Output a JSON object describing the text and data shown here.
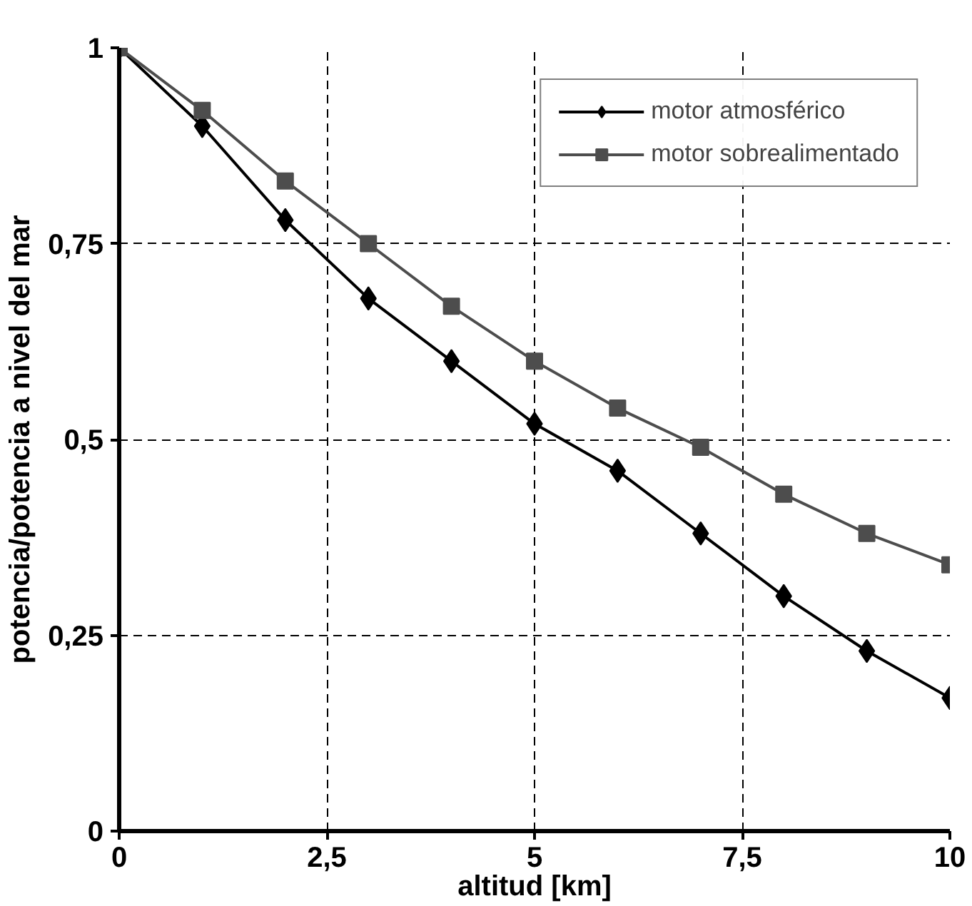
{
  "chart_data": {
    "type": "line",
    "xlabel": "altitud [km]",
    "ylabel": "potencia/potencia a nivel del mar",
    "x": [
      0,
      1,
      2,
      3,
      4,
      5,
      6,
      7,
      8,
      9,
      10
    ],
    "series": [
      {
        "name": "motor atmosférico",
        "color": "#000000",
        "marker": "diamond",
        "values": [
          1,
          0.9,
          0.78,
          0.68,
          0.6,
          0.52,
          0.46,
          0.38,
          0.3,
          0.23,
          0.17
        ]
      },
      {
        "name": "motor sobrealimentado",
        "color": "#4d4d4d",
        "marker": "square",
        "values": [
          1,
          0.92,
          0.83,
          0.75,
          0.67,
          0.6,
          0.54,
          0.49,
          0.43,
          0.38,
          0.34
        ]
      }
    ],
    "xlim": [
      0,
      10
    ],
    "ylim": [
      0,
      1
    ],
    "xticks": [
      0,
      {
        "value": 2.5,
        "label": "2,5"
      },
      5,
      {
        "value": 7.5,
        "label": "7,5"
      },
      10
    ],
    "yticks": [
      0,
      {
        "value": 0.25,
        "label": "0,25"
      },
      {
        "value": 0.5,
        "label": "0,5"
      },
      {
        "value": 0.75,
        "label": "0,75"
      },
      1
    ],
    "grid": true,
    "legend": "top right",
    "line_style": "solid"
  }
}
